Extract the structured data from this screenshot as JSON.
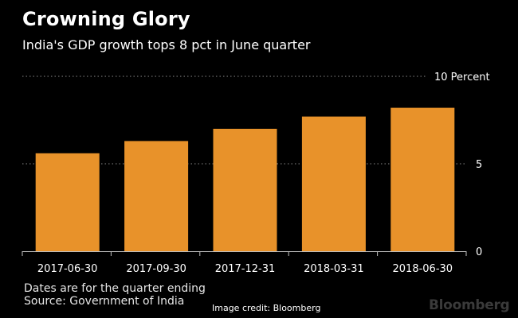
{
  "header": {
    "title": "Crowning Glory",
    "subtitle": "India's GDP growth tops 8 pct in June quarter"
  },
  "chart_data": {
    "type": "bar",
    "categories": [
      "2017-06-30",
      "2017-09-30",
      "2017-12-31",
      "2018-03-31",
      "2018-06-30"
    ],
    "values": [
      5.6,
      6.3,
      7.0,
      7.7,
      8.2
    ],
    "y_ticks": [
      {
        "value": 0,
        "label": "0"
      },
      {
        "value": 5,
        "label": "5"
      },
      {
        "value": 10,
        "label": "10 Percent"
      }
    ],
    "ylim": [
      0,
      10
    ],
    "grid": true,
    "bar_color": "#e8922a",
    "grid_color": "#8a8a8a"
  },
  "footer": {
    "note": "Dates are for the quarter ending",
    "source": "Source: Government of India",
    "credit": "Image credit: Bloomberg",
    "logo": "Bloomberg"
  },
  "colors": {
    "background": "#000000",
    "text": "#ffffff",
    "axis": "#bfbfbf"
  }
}
